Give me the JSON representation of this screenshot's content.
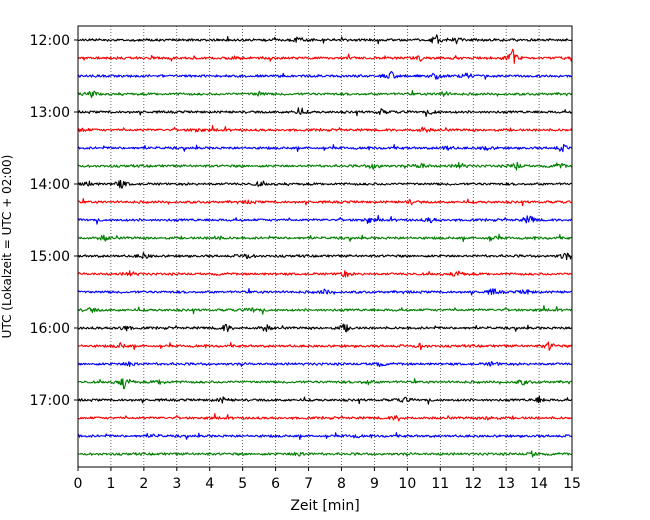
{
  "chart_data": {
    "type": "line",
    "xlabel": "Zeit  [min]",
    "ylabel": "UTC (Lokalzeit = UTC + 02:00)",
    "xlim": [
      0,
      15
    ],
    "x_ticks": [
      0,
      1,
      2,
      3,
      4,
      5,
      6,
      7,
      8,
      9,
      10,
      11,
      12,
      13,
      14,
      15
    ],
    "y_ticks": [
      "12:00",
      "13:00",
      "14:00",
      "15:00",
      "16:00",
      "17:00"
    ],
    "trace_interval_min": 15,
    "first_trace": "12:00",
    "grid": "vertical dotted at each minute",
    "colors": [
      "#000000",
      "#ff0000",
      "#0000ff",
      "#008000"
    ],
    "series": [
      {
        "start": "12:00",
        "color": "#000000",
        "events": [
          [
            10.9,
            6
          ],
          [
            11.5,
            3
          ],
          [
            6.7,
            3
          ]
        ]
      },
      {
        "start": "12:15",
        "color": "#ff0000",
        "events": [
          [
            13.2,
            8
          ],
          [
            10.4,
            2.5
          ],
          [
            4.8,
            2
          ]
        ]
      },
      {
        "start": "12:30",
        "color": "#0000ff",
        "events": [
          [
            9.5,
            4
          ],
          [
            10.9,
            2.5
          ],
          [
            11.8,
            2.5
          ]
        ]
      },
      {
        "start": "12:45",
        "color": "#008000",
        "events": [
          [
            0.4,
            3.5
          ],
          [
            5.5,
            2.5
          ],
          [
            11.1,
            2.5
          ]
        ]
      },
      {
        "start": "13:00",
        "color": "#000000",
        "events": [
          [
            6.7,
            3.5
          ],
          [
            9.2,
            2.5
          ],
          [
            10.8,
            2.5
          ]
        ]
      },
      {
        "start": "13:15",
        "color": "#ff0000",
        "events": [
          [
            10.5,
            3
          ],
          [
            3.6,
            2.5
          ],
          [
            0.1,
            2.5
          ]
        ]
      },
      {
        "start": "13:30",
        "color": "#0000ff",
        "events": [
          [
            14.7,
            3.5
          ],
          [
            11.2,
            2.5
          ],
          [
            12.4,
            2
          ]
        ]
      },
      {
        "start": "13:45",
        "color": "#008000",
        "events": [
          [
            9.0,
            4
          ],
          [
            10.4,
            3.5
          ],
          [
            11.6,
            3.5
          ],
          [
            13.3,
            4
          ],
          [
            14.6,
            3
          ]
        ]
      },
      {
        "start": "14:00",
        "color": "#000000",
        "events": [
          [
            1.3,
            4.5
          ],
          [
            0.3,
            3
          ],
          [
            5.5,
            2
          ]
        ]
      },
      {
        "start": "14:15",
        "color": "#ff0000",
        "events": [
          [
            10.1,
            2
          ],
          [
            5.2,
            1.5
          ]
        ]
      },
      {
        "start": "14:30",
        "color": "#0000ff",
        "events": [
          [
            13.7,
            5
          ],
          [
            8.8,
            3
          ],
          [
            10.7,
            2.5
          ]
        ]
      },
      {
        "start": "14:45",
        "color": "#008000",
        "events": [
          [
            0.8,
            3
          ],
          [
            12.6,
            2.5
          ],
          [
            4.2,
            2.5
          ]
        ]
      },
      {
        "start": "15:00",
        "color": "#000000",
        "events": [
          [
            14.8,
            4
          ],
          [
            5.1,
            3
          ],
          [
            2.0,
            3
          ]
        ]
      },
      {
        "start": "15:15",
        "color": "#ff0000",
        "events": [
          [
            1.6,
            3
          ],
          [
            8.1,
            3
          ],
          [
            11.5,
            3.5
          ]
        ]
      },
      {
        "start": "15:30",
        "color": "#0000ff",
        "events": [
          [
            12.6,
            3.5
          ],
          [
            7.5,
            2.5
          ],
          [
            13.6,
            2.5
          ]
        ]
      },
      {
        "start": "15:45",
        "color": "#008000",
        "events": [
          [
            0.4,
            2.5
          ],
          [
            5.3,
            2
          ]
        ]
      },
      {
        "start": "16:00",
        "color": "#000000",
        "events": [
          [
            4.5,
            4
          ],
          [
            8.1,
            4.5
          ],
          [
            5.7,
            3.5
          ],
          [
            1.4,
            3.5
          ]
        ]
      },
      {
        "start": "16:15",
        "color": "#ff0000",
        "events": [
          [
            14.3,
            4
          ],
          [
            10.4,
            2.5
          ],
          [
            1.3,
            2.5
          ]
        ]
      },
      {
        "start": "16:30",
        "color": "#0000ff",
        "events": [
          [
            1.6,
            3
          ],
          [
            9.1,
            2.5
          ],
          [
            12.6,
            2.5
          ]
        ]
      },
      {
        "start": "16:45",
        "color": "#008000",
        "events": [
          [
            1.4,
            8
          ],
          [
            2.5,
            2.5
          ],
          [
            8.8,
            2.5
          ],
          [
            13.5,
            2.5
          ]
        ]
      },
      {
        "start": "17:00",
        "color": "#000000",
        "events": [
          [
            14.0,
            3
          ],
          [
            4.4,
            2.5
          ],
          [
            9.9,
            2.5
          ]
        ]
      },
      {
        "start": "17:15",
        "color": "#ff0000",
        "events": [
          [
            9.7,
            3
          ],
          [
            12.5,
            2.5
          ]
        ]
      },
      {
        "start": "17:30",
        "color": "#0000ff",
        "events": [
          [
            2.3,
            1.5
          ],
          [
            8.4,
            1.5
          ]
        ]
      },
      {
        "start": "17:45",
        "color": "#008000",
        "events": [
          [
            6.7,
            3
          ],
          [
            13.8,
            2.5
          ]
        ]
      }
    ]
  }
}
